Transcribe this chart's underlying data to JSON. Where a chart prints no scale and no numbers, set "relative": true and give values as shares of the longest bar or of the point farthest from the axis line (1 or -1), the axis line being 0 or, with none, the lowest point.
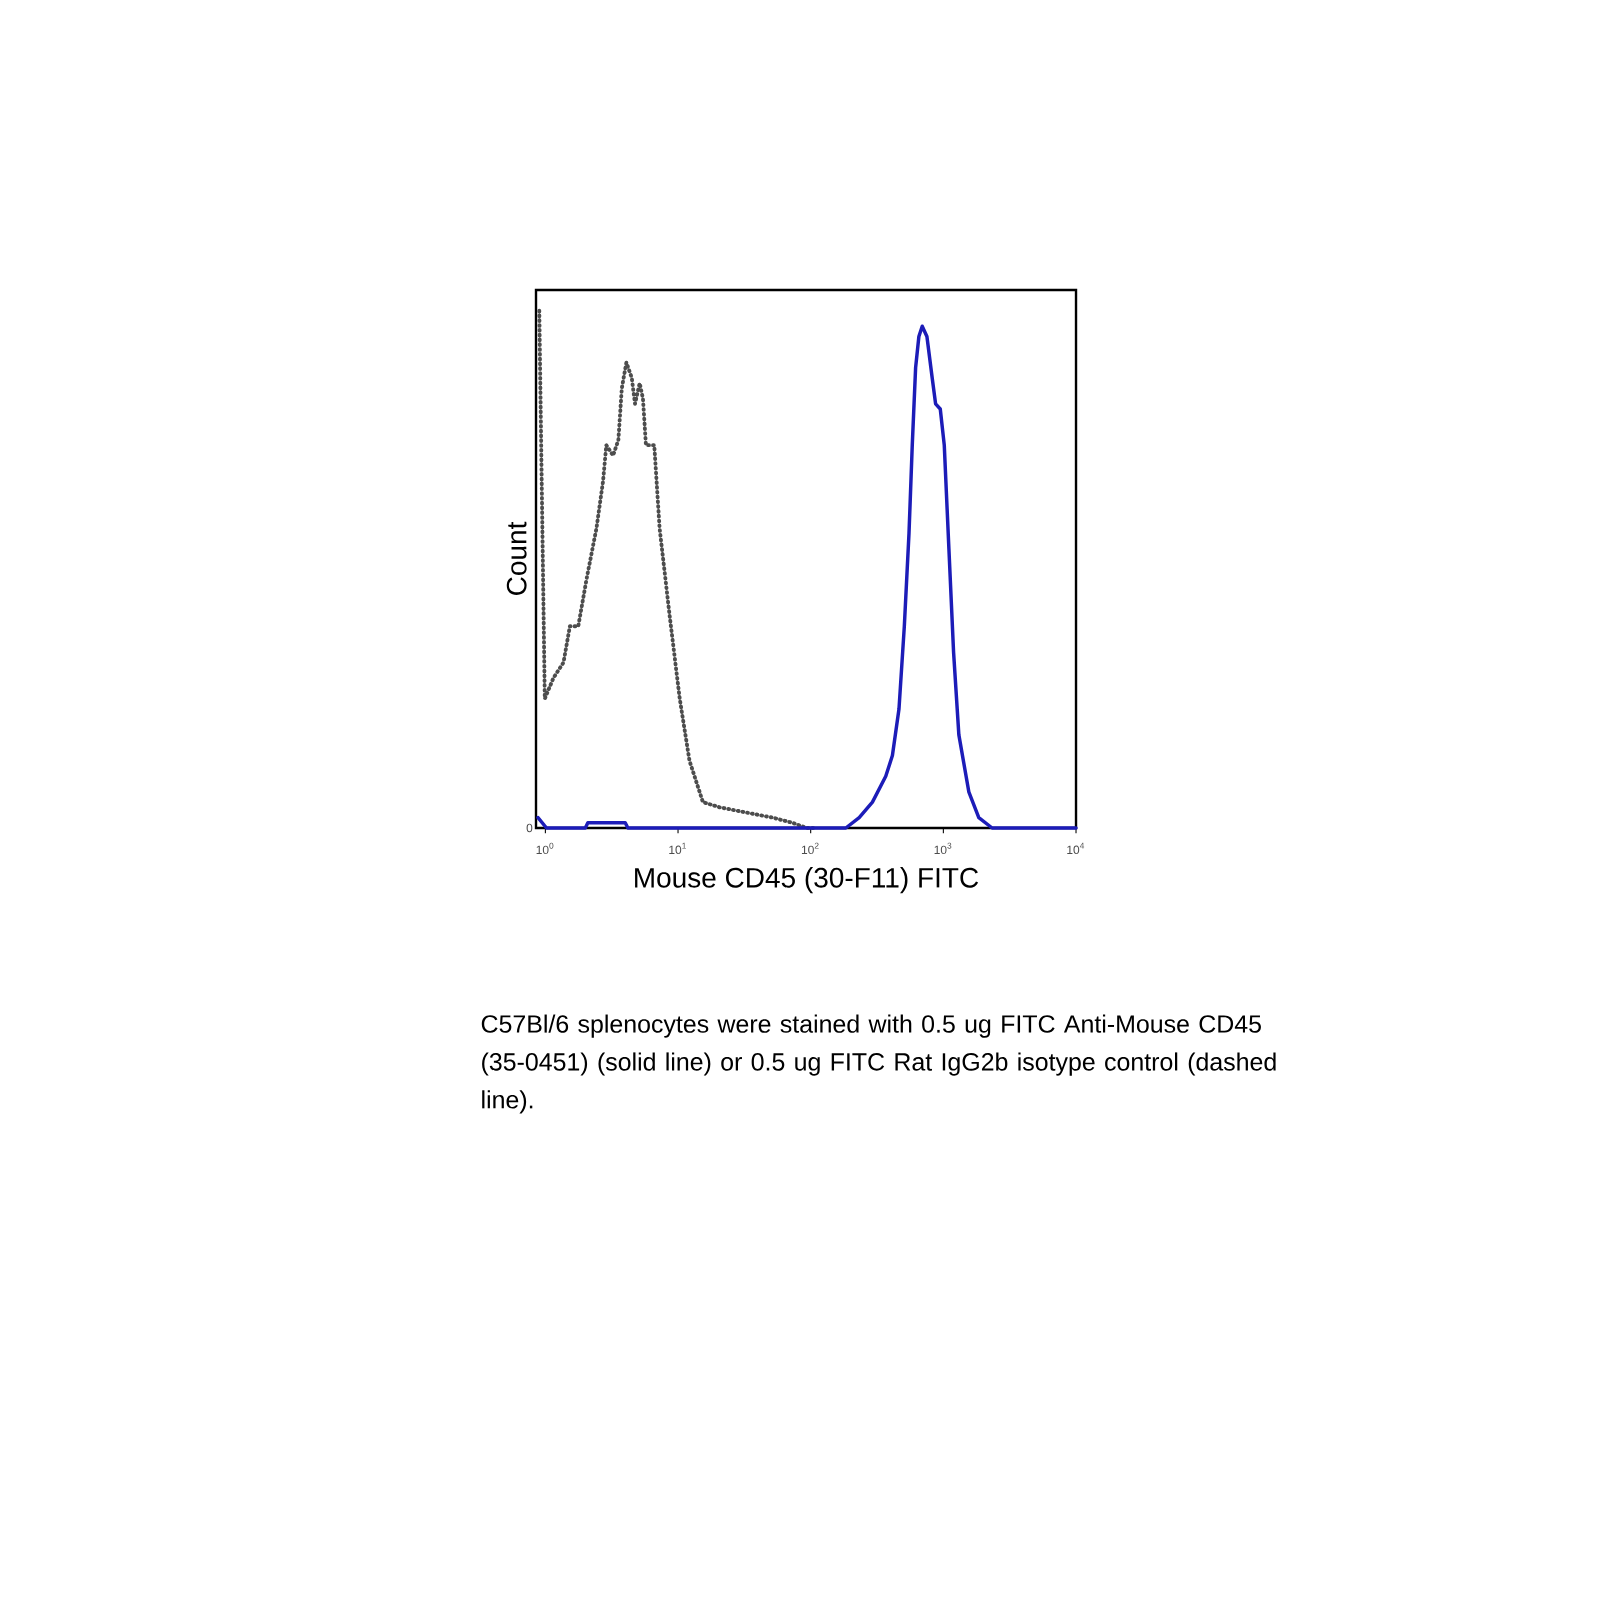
{
  "chart_data": {
    "type": "line",
    "xlabel": "Mouse CD45 (30-F11) FITC",
    "ylabel": "Count",
    "relative": true,
    "log": "x",
    "xlim": [
      0.85,
      10000
    ],
    "xticks": [
      {
        "value": 1,
        "label": "10$^{0}$"
      },
      {
        "value": 10,
        "label": "10$^{1}$"
      },
      {
        "value": 100,
        "label": "10$^{2}$"
      },
      {
        "value": 1000,
        "label": "10$^{3}$"
      },
      {
        "value": 10000,
        "label": "10$^{4}$"
      }
    ],
    "series": [
      {
        "color": "#4d4d4d",
        "line_style": "dotted",
        "x": [
          0.9,
          0.99,
          1.15,
          1.37,
          1.53,
          1.77,
          2.04,
          2.43,
          2.72,
          2.88,
          3.24,
          3.55,
          3.77,
          4.08,
          4.48,
          4.74,
          5.14,
          5.44,
          5.73,
          6.62,
          7.26,
          8.65,
          10.3,
          12.2,
          15.4,
          20.6,
          32.5,
          51.8,
          72.8,
          93.7,
          109
        ],
        "values": [
          1.0,
          0.25,
          0.29,
          0.32,
          0.39,
          0.39,
          0.48,
          0.58,
          0.67,
          0.74,
          0.72,
          0.75,
          0.85,
          0.9,
          0.87,
          0.82,
          0.86,
          0.83,
          0.74,
          0.74,
          0.58,
          0.41,
          0.25,
          0.13,
          0.05,
          0.04,
          0.03,
          0.02,
          0.01,
          0.0,
          0.0
        ]
      },
      {
        "color": "#1c1cb8",
        "line_style": "solid",
        "x": [
          0.88,
          1.02,
          2.0,
          2.09,
          4.0,
          4.19,
          184,
          232,
          292,
          368,
          413,
          463,
          508,
          551,
          583,
          618,
          654,
          693,
          752,
          824,
          874,
          948,
          1016,
          1101,
          1194,
          1309,
          1556,
          1850,
          2332,
          3185,
          10000
        ],
        "values": [
          0.02,
          0.0,
          0.0,
          0.01,
          0.01,
          0.0,
          0.0,
          0.02,
          0.05,
          0.1,
          0.14,
          0.23,
          0.39,
          0.57,
          0.74,
          0.89,
          0.95,
          0.97,
          0.95,
          0.87,
          0.82,
          0.81,
          0.74,
          0.54,
          0.34,
          0.18,
          0.07,
          0.02,
          0.0,
          0.0,
          0.0
        ]
      }
    ],
    "annotations": [
      {
        "text": "0",
        "x": 0.85,
        "y": 0
      },
      "C57Bl/6 splenocytes were stained with 0.5 ug FITC Anti-Mouse CD45 (35-0451) (solid line) or 0.5 ug FITC Rat IgG2b isotype control (dashed line)."
    ]
  }
}
